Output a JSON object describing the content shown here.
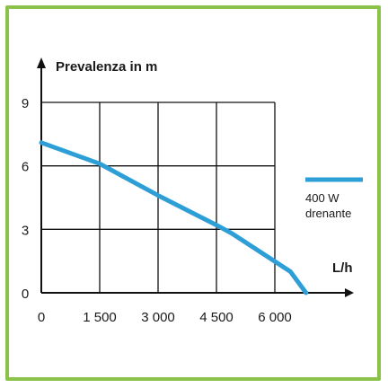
{
  "chart_data": {
    "type": "line",
    "title": "Prevalenza in m",
    "x_unit": "L/h",
    "xlabel": "",
    "ylabel": "Prevalenza in m",
    "xlim": [
      0,
      6500
    ],
    "ylim": [
      0,
      9
    ],
    "x_ticks": [
      0,
      1500,
      3000,
      4500,
      6000
    ],
    "x_tick_labels": [
      "0",
      "1 500",
      "3 000",
      "4 500",
      "6 000"
    ],
    "y_ticks": [
      0,
      3,
      6,
      9
    ],
    "y_tick_labels": [
      "0",
      "3",
      "6",
      "9"
    ],
    "grid": true,
    "legend_position": "right",
    "series": [
      {
        "name": "400 W drenante",
        "legend_lines": [
          "400 W",
          "drenante"
        ],
        "color": "#2e9fd6",
        "x": [
          0,
          1500,
          3000,
          4500,
          4900,
          6400,
          6800
        ],
        "y": [
          7.1,
          6.1,
          4.6,
          3.2,
          2.8,
          1.0,
          0.0
        ]
      }
    ]
  }
}
